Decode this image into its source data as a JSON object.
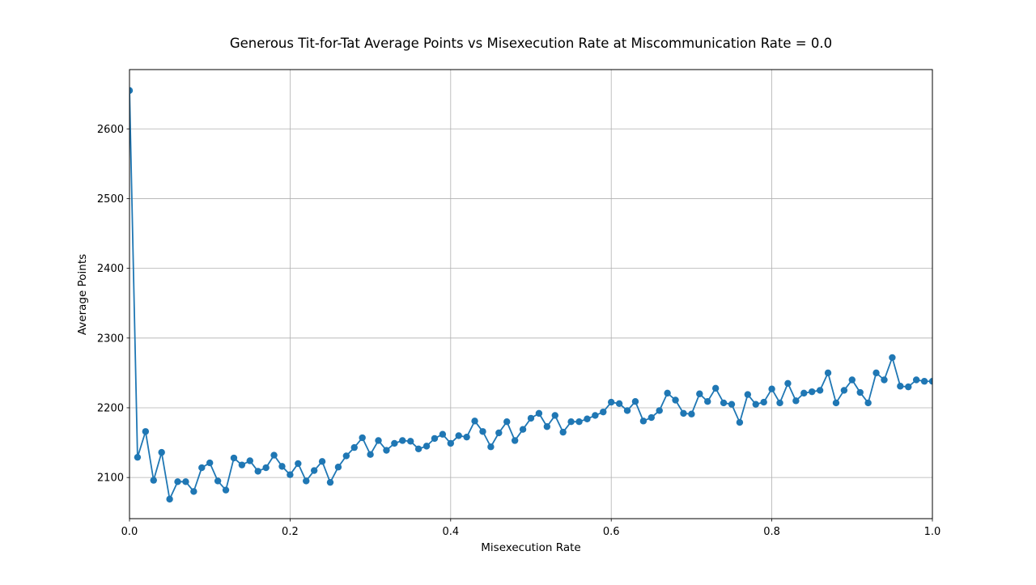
{
  "chart_data": {
    "type": "line",
    "title": "Generous Tit-for-Tat Average Points vs Misexecution Rate at Miscommunication Rate = 0.0",
    "xlabel": "Misexecution Rate",
    "ylabel": "Average Points",
    "xlim": [
      0.0,
      1.0
    ],
    "ylim": [
      2041,
      2685
    ],
    "x_ticks": [
      0.0,
      0.2,
      0.4,
      0.6,
      0.8,
      1.0
    ],
    "x_tick_labels": [
      "0.0",
      "0.2",
      "0.4",
      "0.6",
      "0.8",
      "1.0"
    ],
    "y_ticks": [
      2100,
      2200,
      2300,
      2400,
      2500,
      2600
    ],
    "y_tick_labels": [
      "2100",
      "2200",
      "2300",
      "2400",
      "2500",
      "2600"
    ],
    "grid": true,
    "marker": "circle",
    "color": "#1f77b4",
    "series": [
      {
        "x": [
          0.0,
          0.01,
          0.02,
          0.03,
          0.04,
          0.05,
          0.06,
          0.07,
          0.08,
          0.09,
          0.1,
          0.11,
          0.12,
          0.13,
          0.14,
          0.15,
          0.16,
          0.17,
          0.18,
          0.19,
          0.2,
          0.21,
          0.22,
          0.23,
          0.24,
          0.25,
          0.26,
          0.27,
          0.28,
          0.29,
          0.3,
          0.31,
          0.32,
          0.33,
          0.34,
          0.35,
          0.36,
          0.37,
          0.38,
          0.39,
          0.4,
          0.41,
          0.42,
          0.43,
          0.44,
          0.45,
          0.46,
          0.47,
          0.48,
          0.49,
          0.5,
          0.51,
          0.52,
          0.53,
          0.54,
          0.55,
          0.56,
          0.57,
          0.58,
          0.59,
          0.6,
          0.61,
          0.62,
          0.63,
          0.64,
          0.65,
          0.66,
          0.67,
          0.68,
          0.69,
          0.7,
          0.71,
          0.72,
          0.73,
          0.74,
          0.75,
          0.76,
          0.77,
          0.78,
          0.79,
          0.8,
          0.81,
          0.82,
          0.83,
          0.84,
          0.85,
          0.86,
          0.87,
          0.88,
          0.89,
          0.9,
          0.91,
          0.92,
          0.93,
          0.94,
          0.95,
          0.96,
          0.97,
          0.98,
          0.99,
          1.0
        ],
        "y": [
          2655,
          2129,
          2166,
          2096,
          2136,
          2069,
          2094,
          2094,
          2080,
          2114,
          2121,
          2095,
          2082,
          2128,
          2118,
          2124,
          2109,
          2114,
          2132,
          2116,
          2104,
          2120,
          2095,
          2110,
          2123,
          2093,
          2115,
          2131,
          2143,
          2157,
          2133,
          2153,
          2139,
          2149,
          2153,
          2152,
          2141,
          2145,
          2156,
          2162,
          2149,
          2160,
          2158,
          2181,
          2166,
          2144,
          2164,
          2180,
          2153,
          2169,
          2185,
          2192,
          2173,
          2189,
          2165,
          2180,
          2180,
          2184,
          2189,
          2194,
          2208,
          2206,
          2196,
          2209,
          2181,
          2186,
          2196,
          2221,
          2211,
          2192,
          2191,
          2220,
          2209,
          2228,
          2207,
          2205,
          2179,
          2219,
          2205,
          2208,
          2227,
          2207,
          2235,
          2210,
          2221,
          2223,
          2225,
          2250,
          2207,
          2225,
          2240,
          2222,
          2207,
          2250,
          2240,
          2272,
          2231,
          2230,
          2240,
          2238,
          2238
        ]
      }
    ]
  }
}
